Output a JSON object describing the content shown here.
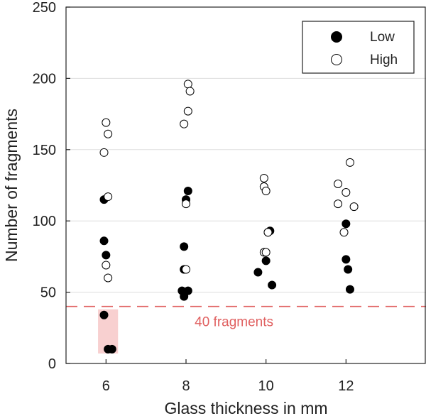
{
  "chart_data": {
    "type": "scatter",
    "xlabel": "Glass thickness in mm",
    "ylabel": "Number of fragments",
    "xlim": [
      5,
      14
    ],
    "ylim": [
      0,
      250
    ],
    "xticks": [
      6,
      8,
      10,
      12
    ],
    "yticks": [
      0,
      50,
      100,
      150,
      200,
      250
    ],
    "grid": "horizontal",
    "legend_position": "top-right",
    "series": [
      {
        "name": "Low",
        "marker": "filled-circle",
        "color": "#000000",
        "points": [
          [
            5.95,
            115
          ],
          [
            5.95,
            86
          ],
          [
            6.0,
            76
          ],
          [
            5.95,
            34
          ],
          [
            6.05,
            10
          ],
          [
            6.15,
            10
          ],
          [
            7.9,
            51
          ],
          [
            7.95,
            47
          ],
          [
            8.05,
            51
          ],
          [
            7.95,
            82
          ],
          [
            7.95,
            66
          ],
          [
            8.0,
            115
          ],
          [
            8.05,
            121
          ],
          [
            9.8,
            64
          ],
          [
            10.0,
            72
          ],
          [
            10.05,
            92
          ],
          [
            10.1,
            93
          ],
          [
            10.15,
            55
          ],
          [
            12.0,
            98
          ],
          [
            12.0,
            73
          ],
          [
            12.05,
            66
          ],
          [
            12.1,
            52
          ]
        ]
      },
      {
        "name": "High",
        "marker": "open-circle",
        "color": "#000000",
        "points": [
          [
            6.0,
            169
          ],
          [
            6.05,
            161
          ],
          [
            5.95,
            148
          ],
          [
            6.05,
            117
          ],
          [
            6.0,
            69
          ],
          [
            6.05,
            60
          ],
          [
            8.05,
            196
          ],
          [
            8.1,
            191
          ],
          [
            8.05,
            177
          ],
          [
            7.95,
            168
          ],
          [
            8.0,
            112
          ],
          [
            8.0,
            66
          ],
          [
            9.95,
            130
          ],
          [
            9.95,
            124
          ],
          [
            10.0,
            121
          ],
          [
            10.05,
            92
          ],
          [
            9.95,
            78
          ],
          [
            10.0,
            78
          ],
          [
            12.1,
            141
          ],
          [
            11.8,
            126
          ],
          [
            12.0,
            120
          ],
          [
            11.8,
            112
          ],
          [
            12.2,
            110
          ],
          [
            11.95,
            92
          ]
        ]
      }
    ],
    "reference_line": {
      "y": 40,
      "label": "40 fragments",
      "color": "#e06060",
      "style": "dashed"
    },
    "highlight_region": {
      "x": [
        5.8,
        6.3
      ],
      "y": [
        7,
        38
      ],
      "color": "#f8d0d0"
    }
  }
}
